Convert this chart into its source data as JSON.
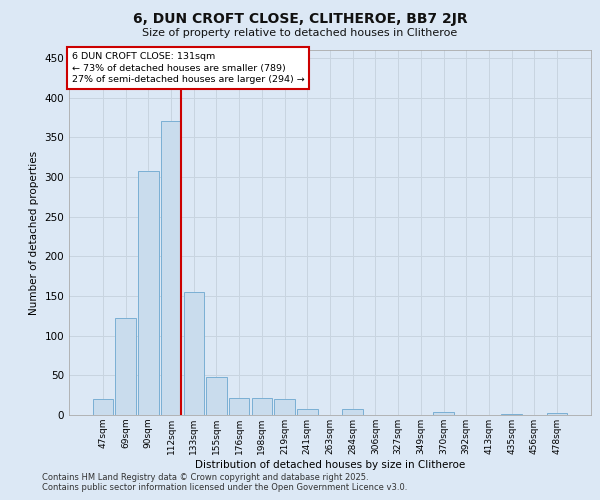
{
  "title": "6, DUN CROFT CLOSE, CLITHEROE, BB7 2JR",
  "subtitle": "Size of property relative to detached houses in Clitheroe",
  "xlabel": "Distribution of detached houses by size in Clitheroe",
  "ylabel": "Number of detached properties",
  "bar_color": "#c9dced",
  "bar_edge_color": "#7aafd4",
  "grid_color": "#c8d4e0",
  "background_color": "#dce8f5",
  "categories": [
    "47sqm",
    "69sqm",
    "90sqm",
    "112sqm",
    "133sqm",
    "155sqm",
    "176sqm",
    "198sqm",
    "219sqm",
    "241sqm",
    "263sqm",
    "284sqm",
    "306sqm",
    "327sqm",
    "349sqm",
    "370sqm",
    "392sqm",
    "413sqm",
    "435sqm",
    "456sqm",
    "478sqm"
  ],
  "values": [
    20,
    122,
    308,
    370,
    155,
    48,
    21,
    21,
    20,
    8,
    0,
    8,
    0,
    0,
    0,
    4,
    0,
    0,
    1,
    0,
    2
  ],
  "marker_label": "6 DUN CROFT CLOSE: 131sqm",
  "pct_smaller": 73,
  "n_smaller": 789,
  "pct_larger": 27,
  "n_larger": 294,
  "ylim": [
    0,
    460
  ],
  "yticks": [
    0,
    50,
    100,
    150,
    200,
    250,
    300,
    350,
    400,
    450
  ],
  "footer_line1": "Contains HM Land Registry data © Crown copyright and database right 2025.",
  "footer_line2": "Contains public sector information licensed under the Open Government Licence v3.0.",
  "annotation_box_color": "#ffffff",
  "annotation_box_edge": "#cc0000",
  "vline_color": "#cc0000",
  "figsize": [
    6.0,
    5.0
  ],
  "dpi": 100
}
